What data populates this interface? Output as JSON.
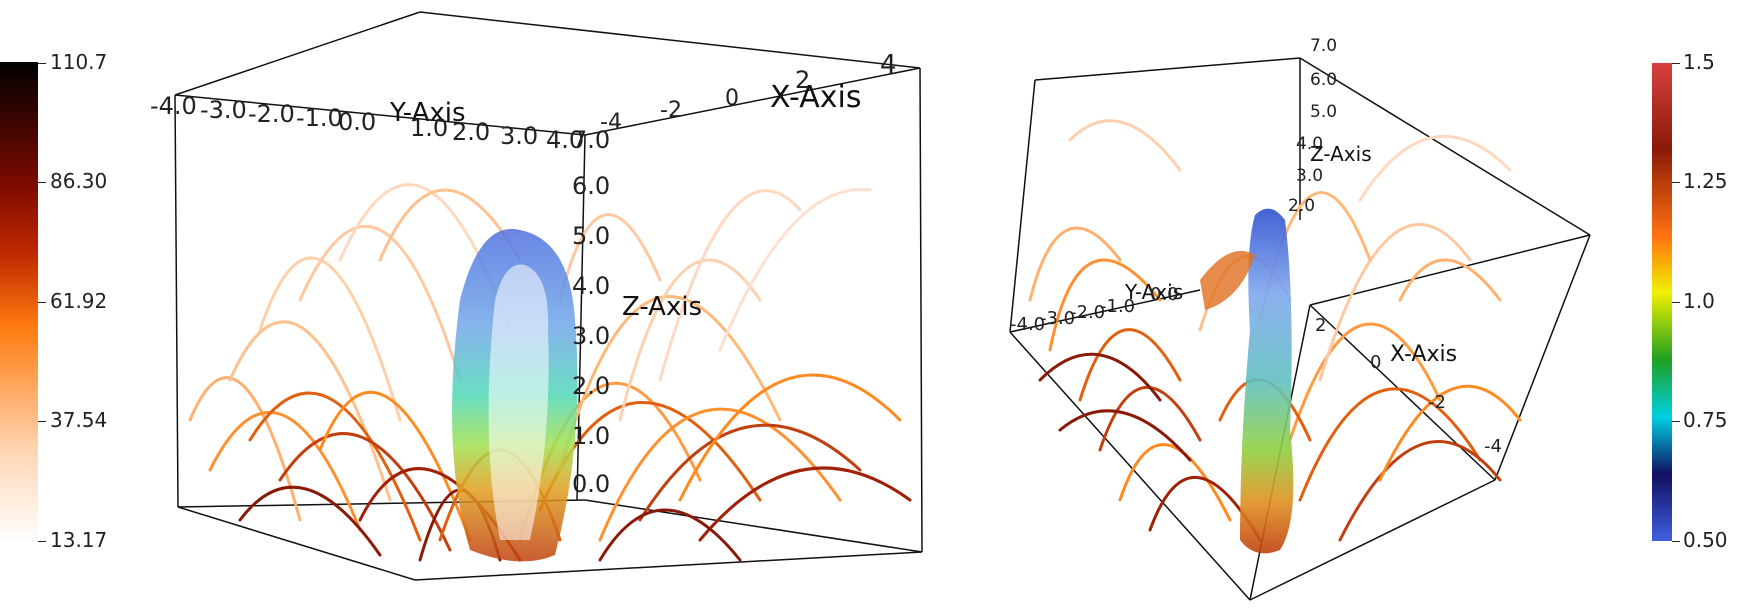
{
  "left_colorbar": {
    "ticks": [
      "110.7",
      "86.30",
      "61.92",
      "37.54",
      "13.17"
    ],
    "colors": [
      "#000000",
      "#7a0a00",
      "#d94000",
      "#ff8a10",
      "#ffffff"
    ]
  },
  "right_colorbar": {
    "ticks": [
      "1.5",
      "1.25",
      "1.0",
      "0.75",
      "0.50"
    ],
    "colors": [
      "#d84040",
      "#8a1a08",
      "#ff8010",
      "#f0f000",
      "#20a020",
      "#00d0e0",
      "#101060",
      "#4060e0"
    ]
  },
  "left_view": {
    "x_axis_title": "X-Axis",
    "y_axis_title": "Y-Axis",
    "z_axis_title": "Z-Axis",
    "x_ticks": [
      "4",
      "2",
      "0",
      "-2",
      "-4"
    ],
    "y_ticks": [
      "-4.0",
      "-3.0",
      "-2.0",
      "-1.0",
      "0.0",
      "1.0",
      "2.0",
      "3.0",
      "4.0"
    ],
    "z_ticks": [
      "7.0",
      "6.0",
      "5.0",
      "4.0",
      "3.0",
      "2.0",
      "1.0",
      "0.0"
    ]
  },
  "right_view": {
    "x_axis_title": "X-Axis",
    "y_axis_title": "Y-Axis",
    "z_axis_title": "Z-Axis",
    "x_ticks": [
      "2",
      "0",
      "-2",
      "-4"
    ],
    "y_ticks": [
      "-4.0",
      "-3.0",
      "-2.0",
      "-1.0",
      "0.0"
    ],
    "z_ticks": [
      "7.0",
      "6.0",
      "5.0",
      "4.0",
      "3.0",
      "2.0"
    ]
  }
}
